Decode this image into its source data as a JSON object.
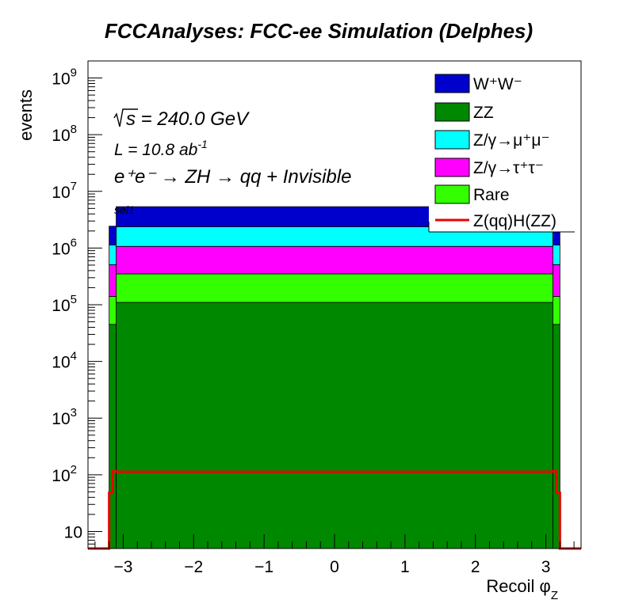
{
  "chart_data": {
    "type": "bar",
    "stacked": true,
    "title": "FCCAnalyses: FCC-ee Simulation (Delphes)",
    "xlabel": "Recoil φ",
    "xlabel_sub": "Z",
    "ylabel": "events",
    "xlim": [
      -3.5,
      3.5
    ],
    "ylim": [
      5,
      2000000000
    ],
    "log_y": true,
    "grid": false,
    "legend_position": "top-right",
    "x_ticks": [
      -3,
      -2,
      -1,
      0,
      1,
      2,
      3
    ],
    "x_tick_labels": [
      "−3",
      "−2",
      "−1",
      "0",
      "1",
      "2",
      "3"
    ],
    "y_ticks": [
      {
        "value": 10,
        "base": "10",
        "exp": ""
      },
      {
        "value": 100,
        "base": "10",
        "exp": "2"
      },
      {
        "value": 1000,
        "base": "10",
        "exp": "3"
      },
      {
        "value": 10000,
        "base": "10",
        "exp": "4"
      },
      {
        "value": 100000,
        "base": "10",
        "exp": "5"
      },
      {
        "value": 1000000,
        "base": "10",
        "exp": "6"
      },
      {
        "value": 10000000,
        "base": "10",
        "exp": "7"
      },
      {
        "value": 100000000,
        "base": "10",
        "exp": "8"
      },
      {
        "value": 1000000000,
        "base": "10",
        "exp": "9"
      }
    ],
    "annotations": {
      "sqrt_s": "s = 240.0 GeV",
      "lumi": "L = 10.8 ab",
      "lumi_exp": "-1",
      "process": "e⁺e⁻ → ZH → qq + Invisible",
      "selection": "sel1"
    },
    "bins": {
      "x": [
        [
          -3.2,
          -3.1
        ],
        [
          -3.1,
          3.1
        ],
        [
          3.1,
          3.2
        ]
      ]
    },
    "series": [
      {
        "name": "ZZ",
        "color": "#008800",
        "values": [
          45000,
          110000,
          45000
        ]
      },
      {
        "name": "Rare",
        "color": "#33ff00",
        "values": [
          95000,
          240000,
          95000
        ]
      },
      {
        "name": "Z/γ→τ⁺τ⁻",
        "color": "#ff00ff",
        "values": [
          370000,
          720000,
          370000
        ]
      },
      {
        "name": "Z/γ→μ⁺μ⁻",
        "color": "#00ffff",
        "values": [
          620000,
          1300000,
          620000
        ]
      },
      {
        "name": "W⁺W⁻",
        "color": "#0000cc",
        "values": [
          1300000,
          3000000,
          1300000
        ]
      }
    ],
    "signal": {
      "name": "Z(qq)H(ZZ)",
      "color": "#ee0000",
      "x": [
        -3.5,
        -3.2,
        -3.2,
        -3.15,
        -3.15,
        -3.1,
        -3.1,
        3.1,
        3.1,
        3.15,
        3.15,
        3.2,
        3.2,
        3.5
      ],
      "values": [
        5,
        5,
        48,
        48,
        115,
        115,
        113,
        113,
        115,
        115,
        48,
        48,
        5,
        5
      ]
    },
    "legend": [
      {
        "label": "W⁺W⁻",
        "color": "#0000cc",
        "kind": "box"
      },
      {
        "label": "ZZ",
        "color": "#008800",
        "kind": "box"
      },
      {
        "label": "Z/γ→μ⁺μ⁻",
        "color": "#00ffff",
        "kind": "box"
      },
      {
        "label": "Z/γ→τ⁺τ⁻",
        "color": "#ff00ff",
        "kind": "box"
      },
      {
        "label": "Rare",
        "color": "#33ff00",
        "kind": "box"
      },
      {
        "label": "Z(qq)H(ZZ)",
        "color": "#ee0000",
        "kind": "line"
      }
    ]
  }
}
